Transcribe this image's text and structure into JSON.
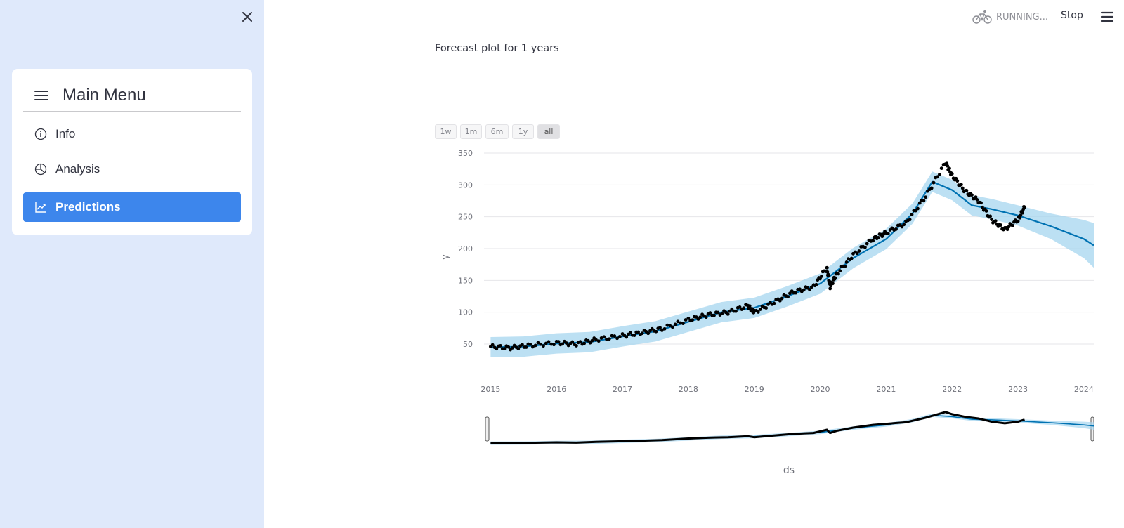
{
  "sidebar": {
    "menu_title": "Main Menu",
    "items": [
      {
        "label": "Info",
        "icon": "info-circle-icon"
      },
      {
        "label": "Analysis",
        "icon": "pie-chart-icon"
      },
      {
        "label": "Predictions",
        "icon": "graph-up-icon",
        "active": true
      }
    ],
    "bg_color": "#dfe9fb",
    "active_color": "#3d86ec"
  },
  "header": {
    "status": "RUNNING...",
    "stop_label": "Stop"
  },
  "main": {
    "title": "Forecast plot for 1 years",
    "range_buttons": [
      "1w",
      "1m",
      "6m",
      "1y",
      "all"
    ],
    "selected_range": "all"
  },
  "chart_data": {
    "type": "line",
    "title": "",
    "xlabel": "ds",
    "ylabel": "y",
    "y_ticks": [
      50,
      100,
      150,
      200,
      250,
      300,
      350
    ],
    "x_ticks": [
      "2015",
      "2016",
      "2017",
      "2018",
      "2019",
      "2020",
      "2021",
      "2022",
      "2023",
      "2024"
    ],
    "xlim": [
      2014.9,
      2024.15
    ],
    "ylim": [
      0,
      360
    ],
    "series": [
      {
        "type": "markers",
        "color": "#000000",
        "x": [
          2015.0,
          2015.3,
          2015.6,
          2016.0,
          2016.3,
          2016.6,
          2017.0,
          2017.3,
          2017.6,
          2018.0,
          2018.3,
          2018.6,
          2018.9,
          2019.0,
          2019.3,
          2019.6,
          2019.9,
          2020.1,
          2020.15,
          2020.25,
          2020.5,
          2020.8,
          2021.0,
          2021.3,
          2021.6,
          2021.9,
          2022.0,
          2022.2,
          2022.4,
          2022.6,
          2022.8,
          2023.0,
          2023.1
        ],
        "y": [
          46,
          44,
          48,
          52,
          50,
          57,
          63,
          68,
          74,
          88,
          96,
          100,
          110,
          100,
          116,
          132,
          140,
          170,
          140,
          160,
          190,
          215,
          225,
          240,
          282,
          335,
          315,
          290,
          275,
          245,
          230,
          245,
          265
        ]
      },
      {
        "type": "line",
        "color": "#0072b2",
        "x": [
          2015.0,
          2015.5,
          2016.0,
          2016.5,
          2017.0,
          2017.5,
          2018.0,
          2018.5,
          2019.0,
          2019.5,
          2020.0,
          2020.5,
          2021.0,
          2021.4,
          2021.7,
          2022.0,
          2022.3,
          2022.6,
          2023.0,
          2023.5,
          2024.0,
          2024.15
        ],
        "y": [
          45,
          46,
          51,
          53,
          62,
          70,
          85,
          100,
          107,
          125,
          145,
          185,
          215,
          255,
          305,
          292,
          268,
          262,
          252,
          235,
          215,
          205
        ]
      },
      {
        "type": "band",
        "color": "#a6d5ef",
        "x": [
          2015.0,
          2015.5,
          2016.0,
          2016.5,
          2017.0,
          2017.5,
          2018.0,
          2018.5,
          2019.0,
          2019.5,
          2020.0,
          2020.5,
          2021.0,
          2021.4,
          2021.7,
          2022.0,
          2022.3,
          2022.6,
          2023.0,
          2023.5,
          2024.0,
          2024.15
        ],
        "upper": [
          61,
          62,
          67,
          69,
          78,
          86,
          101,
          116,
          123,
          141,
          161,
          201,
          231,
          271,
          321,
          308,
          284,
          278,
          268,
          255,
          245,
          240
        ],
        "lower": [
          29,
          30,
          35,
          37,
          46,
          54,
          69,
          84,
          91,
          109,
          129,
          169,
          199,
          239,
          289,
          276,
          252,
          246,
          236,
          215,
          185,
          170
        ]
      }
    ]
  }
}
